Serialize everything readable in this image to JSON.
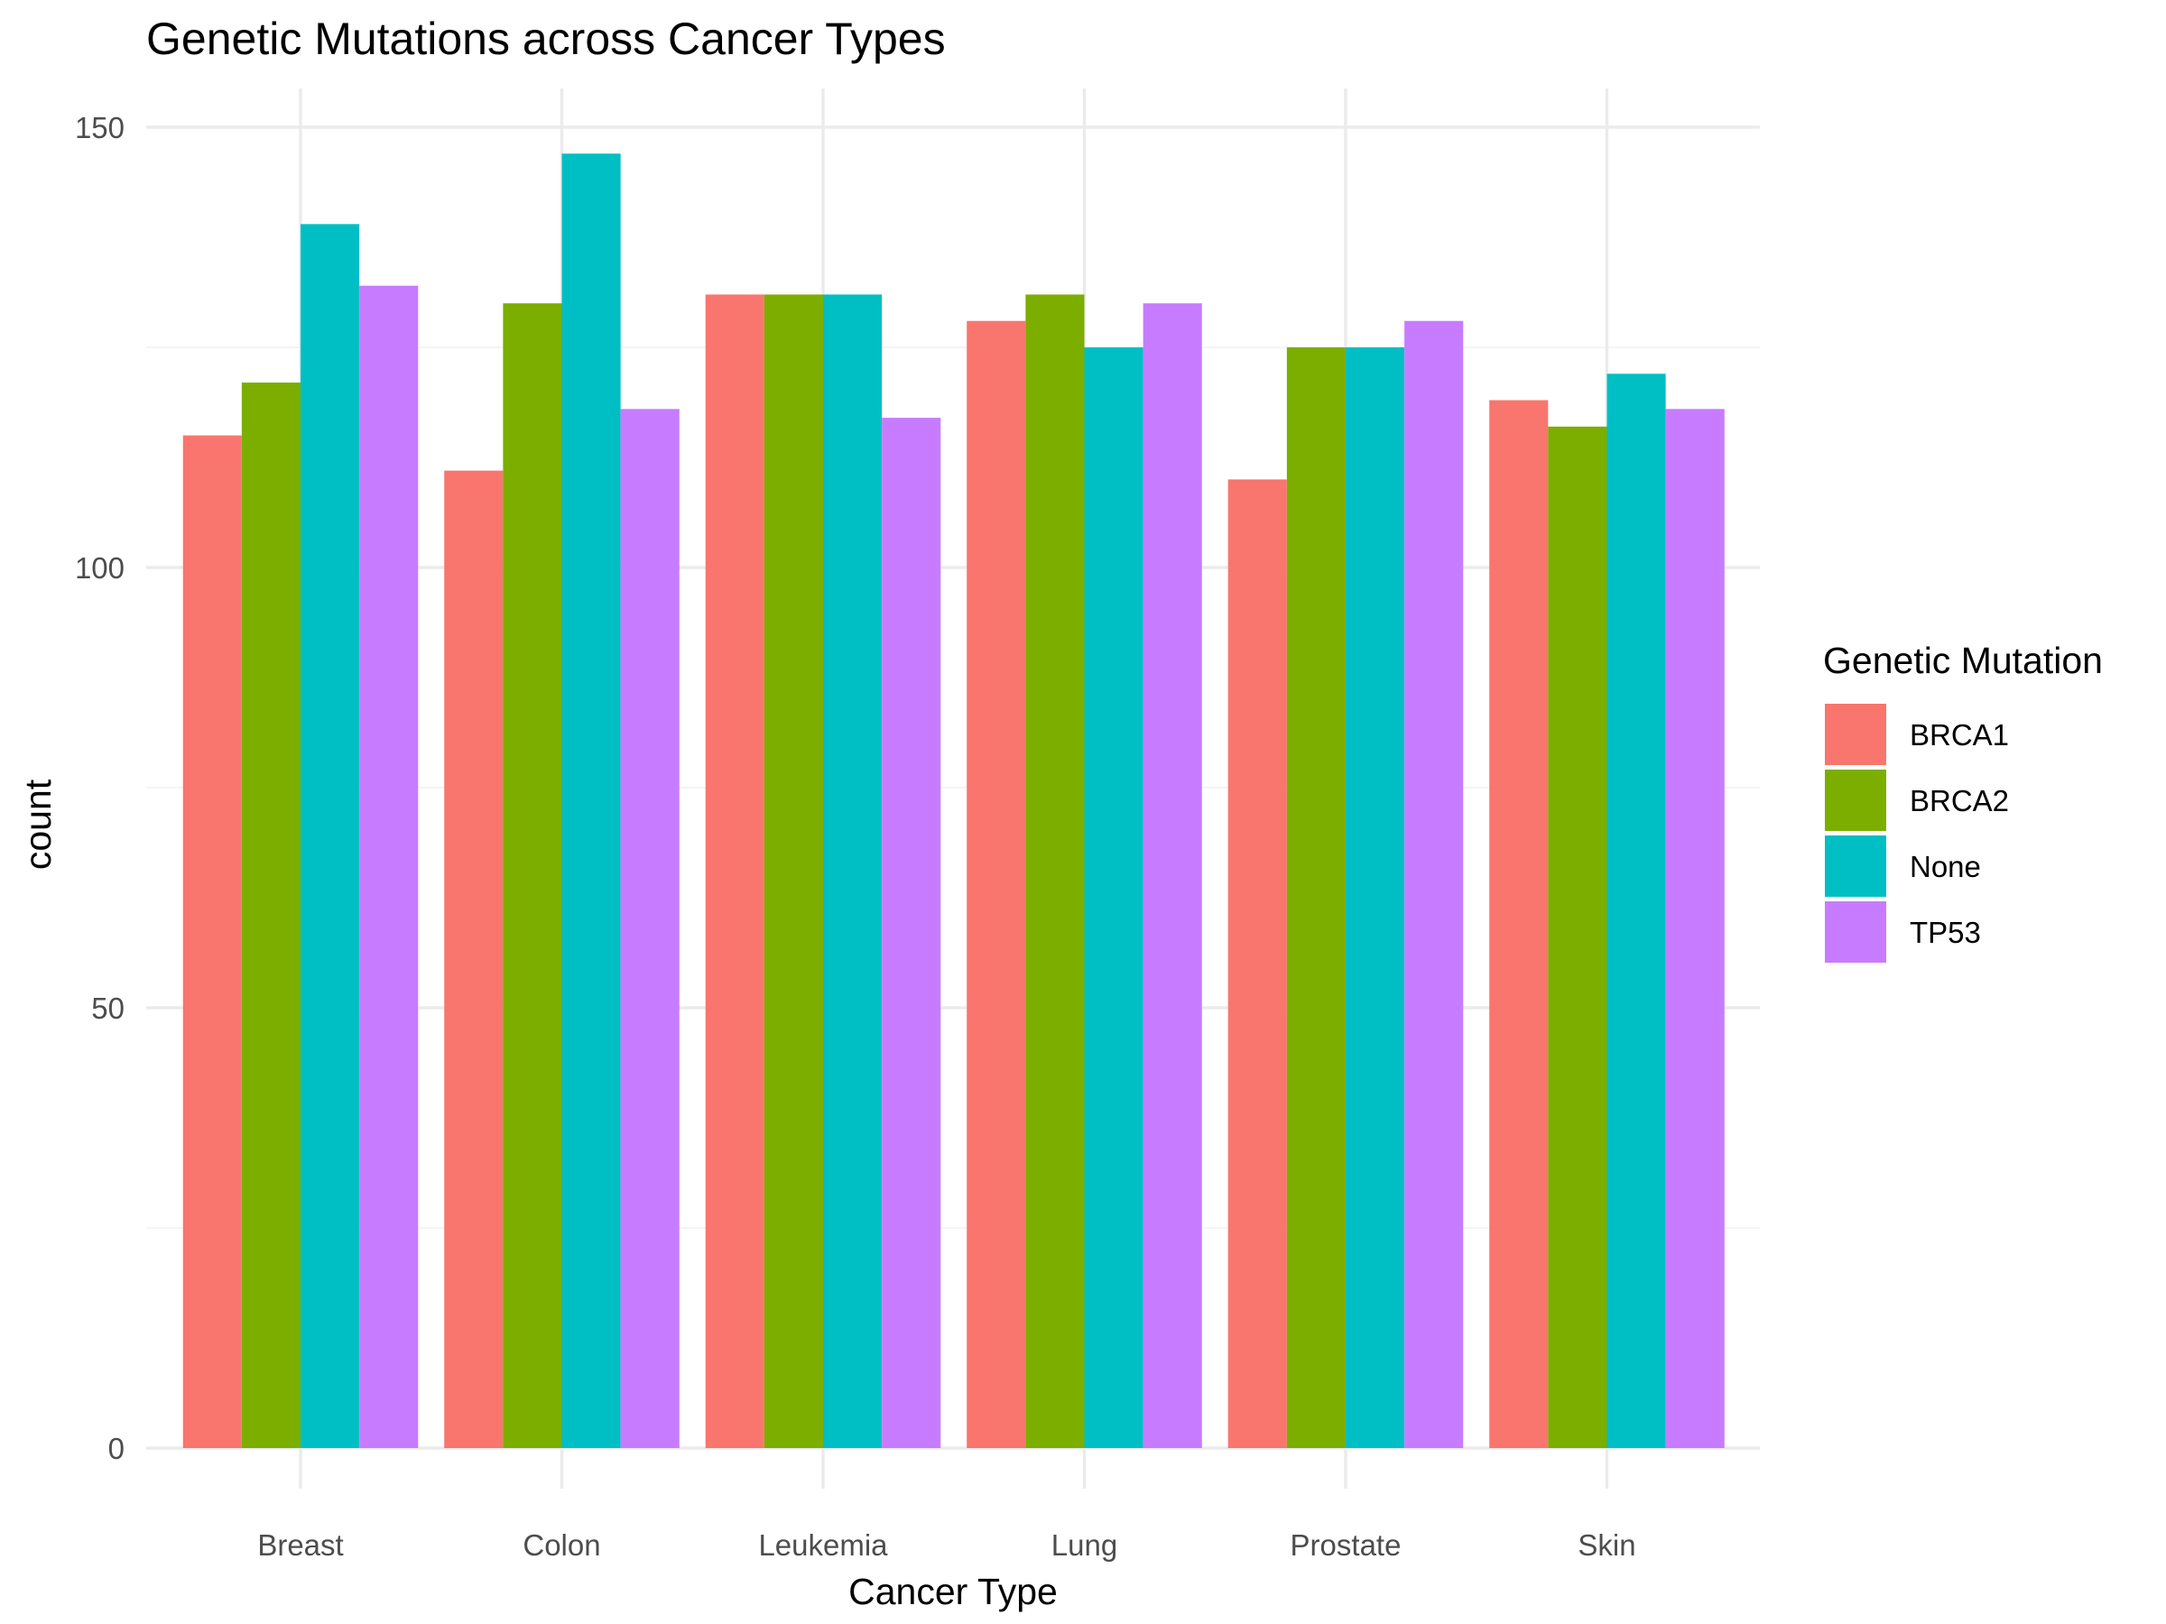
{
  "chart_data": {
    "type": "bar",
    "title": "Genetic Mutations across Cancer Types",
    "xlabel": "Cancer Type",
    "ylabel": "count",
    "categories": [
      "Breast",
      "Colon",
      "Leukemia",
      "Lung",
      "Prostate",
      "Skin"
    ],
    "series": [
      {
        "name": "BRCA1",
        "color": "#F8766D",
        "values": [
          115,
          111,
          131,
          128,
          110,
          119
        ]
      },
      {
        "name": "BRCA2",
        "color": "#7CAE00",
        "values": [
          121,
          130,
          131,
          131,
          125,
          116
        ]
      },
      {
        "name": "None",
        "color": "#00BFC4",
        "values": [
          139,
          147,
          131,
          125,
          125,
          122
        ]
      },
      {
        "name": "TP53",
        "color": "#C77CFF",
        "values": [
          132,
          118,
          117,
          130,
          128,
          118
        ]
      }
    ],
    "ylim": [
      0,
      155
    ],
    "yticks": [
      0,
      50,
      100,
      150
    ],
    "grid": true,
    "legend": {
      "title": "Genetic Mutation",
      "position": "right"
    }
  }
}
